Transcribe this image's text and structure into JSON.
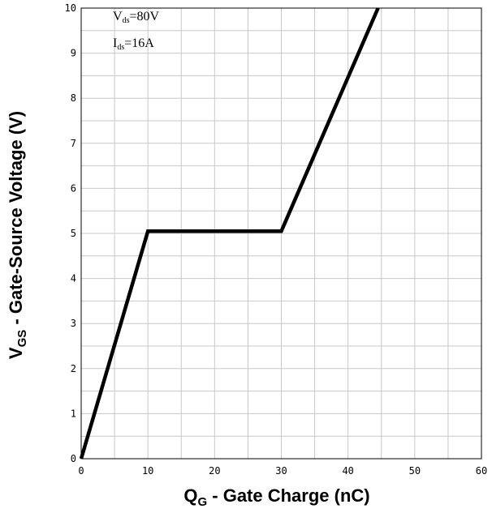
{
  "chart_data": {
    "type": "line",
    "xlabel": {
      "main": "Q",
      "sub": "G",
      "rest": " - Gate Charge (nC)"
    },
    "ylabel": {
      "main": "V",
      "sub": "GS",
      "rest": " - Gate-Source Voltage (V)"
    },
    "xlim": [
      0,
      60
    ],
    "ylim": [
      0,
      10
    ],
    "x_ticks": [
      0,
      10,
      20,
      30,
      40,
      50,
      60
    ],
    "y_ticks": [
      0,
      1,
      2,
      3,
      4,
      5,
      6,
      7,
      8,
      9,
      10
    ],
    "grid": true,
    "annotations": [
      {
        "main": "V",
        "sub": "ds",
        "rest": "=80V"
      },
      {
        "main": "I",
        "sub": "ds",
        "rest": "=16A"
      }
    ],
    "series": [
      {
        "x": [
          0,
          10,
          30,
          44.5
        ],
        "y": [
          0,
          5.05,
          5.05,
          10
        ]
      }
    ]
  }
}
